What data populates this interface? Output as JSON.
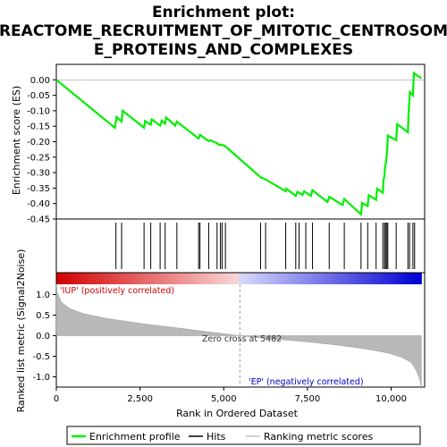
{
  "chart_data": {
    "type": "line",
    "title_lines": [
      "Enrichment plot:",
      "REACTOME_RECRUITMENT_OF_MITOTIC_CENTROSOM",
      "E_PROTEINS_AND_COMPLEXES"
    ],
    "top_panel": {
      "ylabel": "Enrichment score (ES)",
      "ylim": [
        -0.45,
        0.05
      ],
      "yticks": [
        "0.00",
        "-0.05",
        "-0.10",
        "-0.15",
        "-0.20",
        "-0.25",
        "-0.30",
        "-0.35",
        "-0.40",
        "-0.45"
      ],
      "ytick_values": [
        0.0,
        -0.05,
        -0.1,
        -0.15,
        -0.2,
        -0.25,
        -0.3,
        -0.35,
        -0.4,
        -0.45
      ],
      "series_color": "#00ee00",
      "es_profile": [
        [
          0,
          0.0
        ],
        [
          1750,
          -0.155
        ],
        [
          1800,
          -0.12
        ],
        [
          1950,
          -0.135
        ],
        [
          1980,
          -0.1
        ],
        [
          2620,
          -0.155
        ],
        [
          2650,
          -0.133
        ],
        [
          2820,
          -0.145
        ],
        [
          2850,
          -0.128
        ],
        [
          3100,
          -0.148
        ],
        [
          3150,
          -0.132
        ],
        [
          3250,
          -0.142
        ],
        [
          3280,
          -0.122
        ],
        [
          3550,
          -0.148
        ],
        [
          3600,
          -0.135
        ],
        [
          4250,
          -0.19
        ],
        [
          4290,
          -0.178
        ],
        [
          4550,
          -0.198
        ],
        [
          4600,
          -0.195
        ],
        [
          4800,
          -0.205
        ],
        [
          4850,
          -0.21
        ],
        [
          4950,
          -0.21
        ],
        [
          5050,
          -0.215
        ],
        [
          6100,
          -0.315
        ],
        [
          6250,
          -0.322
        ],
        [
          6850,
          -0.36
        ],
        [
          6870,
          -0.352
        ],
        [
          7150,
          -0.375
        ],
        [
          7200,
          -0.362
        ],
        [
          7350,
          -0.372
        ],
        [
          7400,
          -0.36
        ],
        [
          7600,
          -0.375
        ],
        [
          7650,
          -0.357
        ],
        [
          8100,
          -0.395
        ],
        [
          8150,
          -0.378
        ],
        [
          8550,
          -0.405
        ],
        [
          8600,
          -0.385
        ],
        [
          9100,
          -0.435
        ],
        [
          9130,
          -0.398
        ],
        [
          9300,
          -0.408
        ],
        [
          9330,
          -0.373
        ],
        [
          9550,
          -0.388
        ],
        [
          9580,
          -0.352
        ],
        [
          9750,
          -0.365
        ],
        [
          9770,
          -0.325
        ],
        [
          9800,
          -0.31
        ],
        [
          9820,
          -0.278
        ],
        [
          9850,
          -0.265
        ],
        [
          9880,
          -0.225
        ],
        [
          9900,
          -0.18
        ],
        [
          10150,
          -0.195
        ],
        [
          10180,
          -0.143
        ],
        [
          10500,
          -0.17
        ],
        [
          10520,
          -0.11
        ],
        [
          10560,
          -0.04
        ],
        [
          10650,
          -0.05
        ],
        [
          10680,
          0.022
        ],
        [
          10900,
          0.005
        ]
      ]
    },
    "hits": [
      1780,
      1950,
      2620,
      2820,
      3100,
      3250,
      3600,
      4250,
      4290,
      4550,
      4800,
      4900,
      4950,
      5050,
      6100,
      6250,
      6850,
      7150,
      7250,
      7450,
      7650,
      8150,
      8600,
      9100,
      9300,
      9550,
      9750,
      9800,
      9830,
      9870,
      9900,
      10150,
      10500,
      10550,
      10650,
      10700
    ],
    "ranked_metric": {
      "ylabel": "Ranked list metric (Signal2Noise)",
      "ylim": [
        -1.25,
        1.25
      ],
      "yticks": [
        "1.0",
        "0.5",
        "0.0",
        "-0.5",
        "-1.0"
      ],
      "ytick_values": [
        1.0,
        0.5,
        0.0,
        -0.5,
        -1.0
      ],
      "curve": [
        [
          0,
          1.25
        ],
        [
          30,
          1.05
        ],
        [
          150,
          0.82
        ],
        [
          400,
          0.66
        ],
        [
          800,
          0.54
        ],
        [
          1500,
          0.42
        ],
        [
          2500,
          0.3
        ],
        [
          3500,
          0.2
        ],
        [
          4500,
          0.1
        ],
        [
          5482,
          0.0
        ],
        [
          6500,
          -0.08
        ],
        [
          7500,
          -0.15
        ],
        [
          8500,
          -0.24
        ],
        [
          9300,
          -0.33
        ],
        [
          9900,
          -0.42
        ],
        [
          10300,
          -0.52
        ],
        [
          10600,
          -0.65
        ],
        [
          10750,
          -0.85
        ],
        [
          10850,
          -1.05
        ],
        [
          10900,
          -1.3
        ]
      ],
      "annotations": {
        "up": "'IUP' (positively correlated)",
        "down": "'EP' (negatively correlated)",
        "zero_cross": "Zero cross at 5482"
      },
      "zero_cross": 5482,
      "up_color": "#cc0000",
      "down_color": "#0000cc"
    },
    "xlabel": "Rank in Ordered Dataset",
    "xlim": [
      0,
      11000
    ],
    "xticks": [
      "0",
      "2,500",
      "5,000",
      "7,500",
      "10,000"
    ],
    "xtick_values": [
      0,
      2500,
      5000,
      7500,
      10000
    ],
    "n_ranks": 10900,
    "legend": {
      "items": [
        "Enrichment profile",
        "Hits",
        "Ranking metric scores"
      ],
      "colors": [
        "#00ee00",
        "#000000",
        "#c0c0c0"
      ]
    }
  }
}
